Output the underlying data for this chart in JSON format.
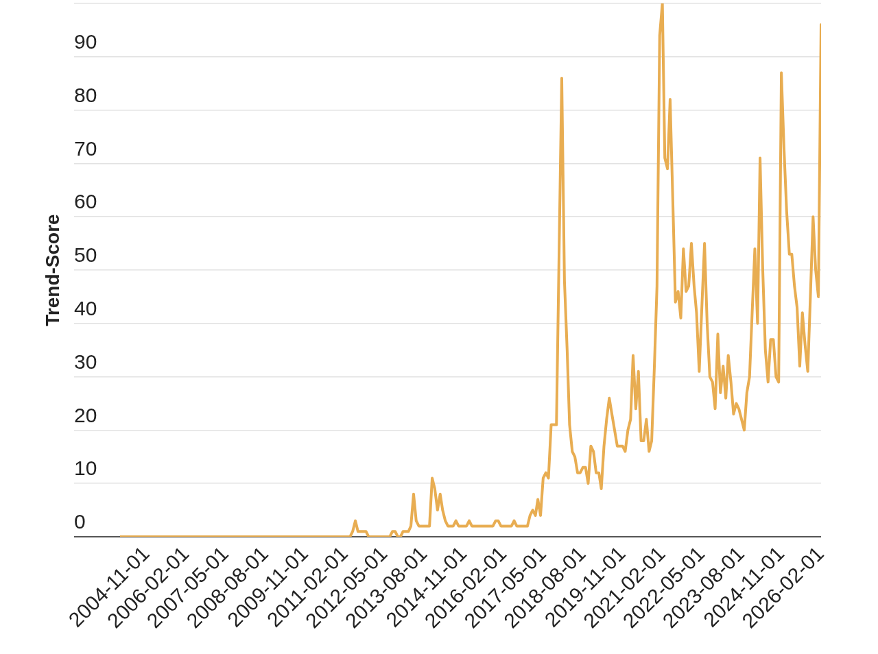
{
  "chart_data": {
    "type": "line",
    "ylabel": "Trend-Score",
    "x": [
      "2004-01-01",
      "2011-04-01",
      "2011-05-01",
      "2011-06-01",
      "2011-07-01",
      "2011-10-01",
      "2011-11-01",
      "2012-07-01",
      "2012-08-01",
      "2012-09-01",
      "2012-10-01",
      "2012-11-01",
      "2012-12-01",
      "2013-02-01",
      "2013-03-01",
      "2013-04-01",
      "2013-05-01",
      "2013-06-01",
      "2013-10-01",
      "2013-11-01",
      "2013-12-01",
      "2014-01-01",
      "2014-02-01",
      "2014-03-01",
      "2014-04-01",
      "2014-05-01",
      "2014-07-01",
      "2014-08-01",
      "2014-09-01",
      "2014-12-01",
      "2015-01-01",
      "2015-02-01",
      "2015-10-01",
      "2015-11-01",
      "2015-12-01",
      "2016-01-01",
      "2016-05-01",
      "2016-06-01",
      "2016-07-01",
      "2016-11-01",
      "2016-12-01",
      "2017-01-01",
      "2017-02-01",
      "2017-03-01",
      "2017-04-01",
      "2017-05-01",
      "2017-06-01",
      "2017-07-01",
      "2017-08-01",
      "2017-10-01",
      "2017-11-01",
      "2017-12-01",
      "2018-01-01",
      "2018-02-01",
      "2018-03-01",
      "2018-04-01",
      "2018-05-01",
      "2018-06-01",
      "2018-07-01",
      "2018-08-01",
      "2018-09-01",
      "2018-10-01",
      "2018-11-01",
      "2018-12-01",
      "2019-01-01",
      "2019-02-01",
      "2019-03-01",
      "2019-04-01",
      "2019-05-01",
      "2019-06-01",
      "2019-07-01",
      "2019-08-01",
      "2019-09-01",
      "2019-11-01",
      "2019-12-01",
      "2020-01-01",
      "2020-02-01",
      "2020-03-01",
      "2020-04-01",
      "2020-05-01",
      "2020-06-01",
      "2020-07-01",
      "2020-08-01",
      "2020-09-01",
      "2020-10-01",
      "2020-11-01",
      "2020-12-01",
      "2021-01-01",
      "2021-02-01",
      "2021-03-01",
      "2021-04-01",
      "2021-05-01",
      "2021-06-01",
      "2021-07-01",
      "2021-08-01",
      "2021-09-01",
      "2021-10-01",
      "2021-11-01",
      "2021-12-01",
      "2022-01-01",
      "2022-02-01",
      "2022-03-01",
      "2022-04-01",
      "2022-05-01",
      "2022-06-01",
      "2022-07-01",
      "2022-08-01",
      "2022-09-01",
      "2022-10-01",
      "2022-11-01",
      "2022-12-01",
      "2023-01-01",
      "2023-02-01",
      "2023-03-01",
      "2023-04-01",
      "2023-05-01",
      "2023-06-01",
      "2023-07-01",
      "2023-08-01",
      "2023-09-01",
      "2023-10-01",
      "2023-11-01",
      "2023-12-01",
      "2024-01-01",
      "2024-02-01",
      "2024-03-01",
      "2024-04-01",
      "2024-05-01",
      "2024-06-01",
      "2024-07-01",
      "2024-08-01",
      "2024-09-01",
      "2024-10-01",
      "2024-11-01",
      "2024-12-01",
      "2025-01-01",
      "2025-02-01",
      "2025-03-01",
      "2025-04-01",
      "2025-05-01",
      "2025-06-01",
      "2025-07-01",
      "2025-08-01",
      "2025-09-01",
      "2025-10-01",
      "2025-11-01",
      "2025-12-01",
      "2026-01-01",
      "2026-02-01"
    ],
    "values": [
      0,
      0,
      1,
      3,
      1,
      1,
      0,
      0,
      1,
      1,
      0,
      0,
      1,
      1,
      2,
      8,
      3,
      2,
      2,
      11,
      9,
      5,
      8,
      5,
      3,
      2,
      2,
      3,
      2,
      2,
      3,
      2,
      2,
      3,
      3,
      2,
      2,
      3,
      2,
      2,
      4,
      5,
      4,
      7,
      4,
      11,
      12,
      11,
      21,
      21,
      54,
      86,
      48,
      35,
      21,
      16,
      15,
      12,
      12,
      13,
      13,
      10,
      17,
      16,
      12,
      12,
      9,
      17,
      22,
      26,
      23,
      20,
      17,
      17,
      16,
      20,
      22,
      34,
      24,
      31,
      18,
      18,
      22,
      16,
      18,
      32,
      47,
      94,
      100,
      71,
      69,
      82,
      63,
      44,
      46,
      41,
      54,
      46,
      47,
      55,
      47,
      42,
      31,
      43,
      55,
      40,
      30,
      29,
      24,
      38,
      27,
      32,
      26,
      34,
      29,
      23,
      25,
      24,
      22,
      20,
      27,
      30,
      42,
      54,
      40,
      71,
      50,
      35,
      29,
      37,
      37,
      30,
      29,
      87,
      73,
      61,
      53,
      53,
      47,
      43,
      32,
      42,
      36,
      31,
      45,
      60,
      50,
      45,
      96
    ],
    "color": "#e8ad52",
    "xlim": [
      "2004-01-01",
      "2026-02-01"
    ],
    "xticks": [
      "2004-11-01",
      "2006-02-01",
      "2007-05-01",
      "2008-08-01",
      "2009-11-01",
      "2011-02-01",
      "2012-05-01",
      "2013-08-01",
      "2014-11-01",
      "2016-02-01",
      "2017-05-01",
      "2018-08-01",
      "2019-11-01",
      "2021-02-01",
      "2022-05-01",
      "2023-08-01",
      "2024-11-01",
      "2026-02-01"
    ],
    "ylim": [
      0,
      100
    ],
    "yticks": [
      0,
      10,
      20,
      30,
      40,
      50,
      60,
      70,
      80,
      90,
      {
        "value": 100,
        "label": null
      }
    ],
    "grid": "y"
  }
}
